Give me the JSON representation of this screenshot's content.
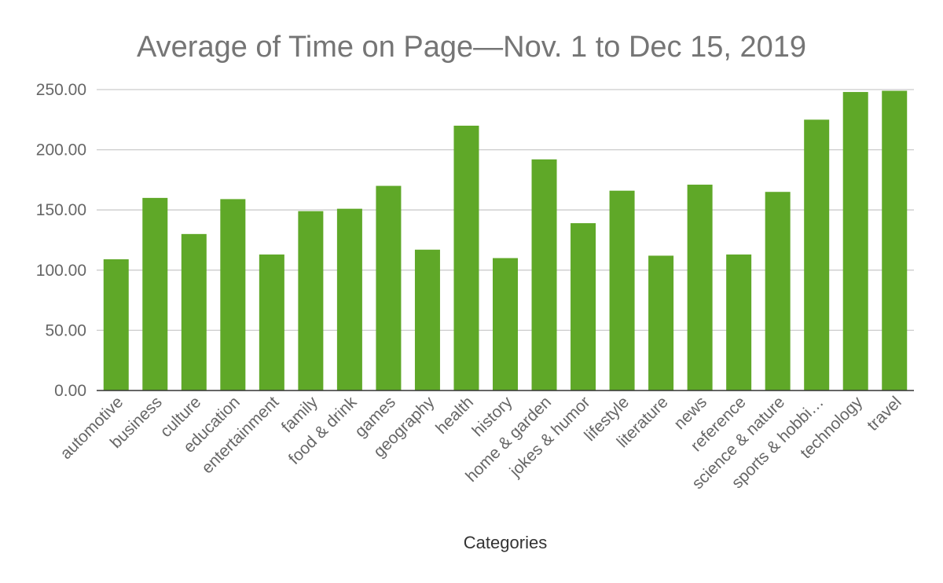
{
  "chart_data": {
    "type": "bar",
    "title": "Average of Time on Page—Nov. 1 to Dec 15, 2019",
    "xlabel": "Categories",
    "ylabel": "",
    "ylim": [
      0,
      250
    ],
    "yticks": [
      "0.00",
      "50.00",
      "100.00",
      "150.00",
      "200.00",
      "250.00"
    ],
    "grid": true,
    "legend": "none",
    "bar_color": "#5fa828",
    "categories": [
      "automotive",
      "business",
      "culture",
      "education",
      "entertainment",
      "family",
      "food & drink",
      "games",
      "geography",
      "health",
      "history",
      "home & garden",
      "jokes & humor",
      "lifestyle",
      "literature",
      "news",
      "reference",
      "science & nature",
      "sports & hobbi…",
      "technology",
      "travel"
    ],
    "values": [
      109,
      160,
      130,
      159,
      113,
      149,
      151,
      170,
      117,
      220,
      110,
      192,
      139,
      166,
      112,
      171,
      113,
      165,
      225,
      248,
      249
    ]
  }
}
